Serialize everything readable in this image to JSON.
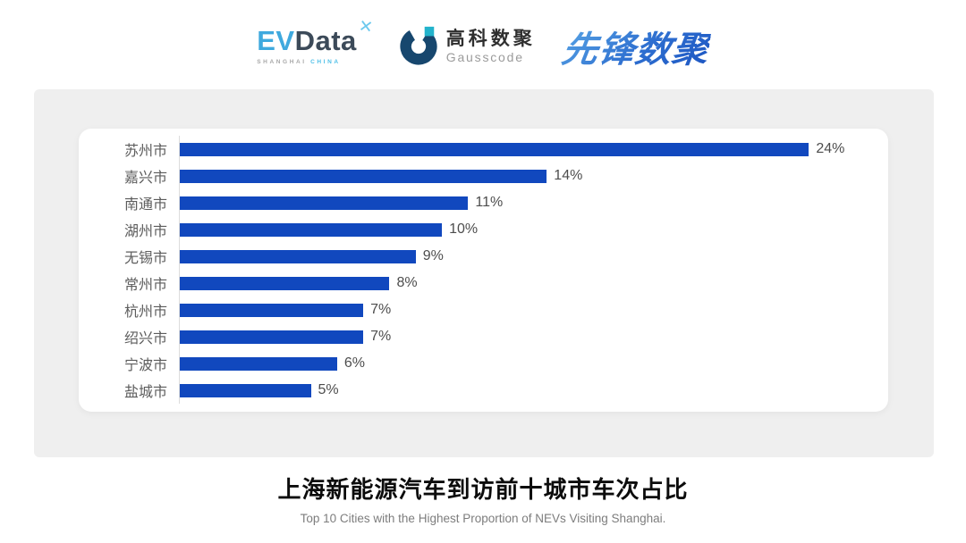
{
  "header": {
    "evdata": {
      "ev": "EV",
      "data": "Data",
      "mark": "✕",
      "sub_left": "SHANGHAI",
      "sub_right": "CHINA"
    },
    "gausscode": {
      "cn": "高科数聚",
      "en": "Gausscode"
    },
    "pioneer": {
      "text": "先锋数聚"
    }
  },
  "chart_data": {
    "type": "bar",
    "orientation": "horizontal",
    "categories": [
      "苏州市",
      "嘉兴市",
      "南通市",
      "湖州市",
      "无锡市",
      "常州市",
      "杭州市",
      "绍兴市",
      "宁波市",
      "盐城市"
    ],
    "values": [
      24,
      14,
      11,
      10,
      9,
      8,
      7,
      7,
      6,
      5
    ],
    "labels": [
      "24%",
      "14%",
      "11%",
      "10%",
      "9%",
      "8%",
      "7%",
      "7%",
      "6%",
      "5%"
    ],
    "bar_color": "#1148BE",
    "xlim": [
      0,
      26
    ],
    "grid": false,
    "legend": "none",
    "title": "上海新能源汽车到访前十城市车次占比",
    "subtitle": "Top 10 Cities with the Highest Proportion of  NEVs Visiting Shanghai."
  },
  "footer": {
    "title": "上海新能源汽车到访前十城市车次占比",
    "subtitle": "Top 10 Cities with the Highest Proportion of  NEVs Visiting Shanghai."
  },
  "colors": {
    "panel_bg": "#EFEFEF",
    "card_bg": "#FFFFFF",
    "bar_blue": "#1148BE",
    "axis_line": "#DCDCDC",
    "category_text": "#5C5C5C",
    "value_text": "#4D4D4D",
    "gausscode_navy": "#17476E",
    "gausscode_teal": "#23B3CC",
    "evdata_light_blue": "#3FA9DE",
    "evdata_dark": "#3C4A59",
    "pioneer_blue": "#2E6FD0"
  }
}
